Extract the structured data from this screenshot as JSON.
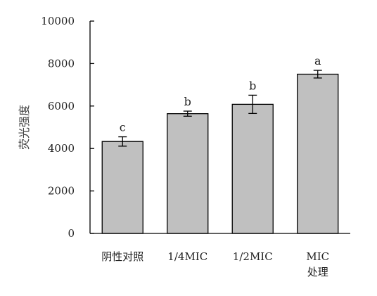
{
  "chart_data": {
    "type": "bar",
    "categories": [
      "阴性对照",
      "1/4MIC",
      "1/2MIC",
      "MIC处理"
    ],
    "category_lines": [
      [
        "阴性对照"
      ],
      [
        "1/4MIC"
      ],
      [
        "1/2MIC"
      ],
      [
        "MIC",
        "处理"
      ]
    ],
    "values": [
      4330,
      5640,
      6080,
      7500
    ],
    "errors": [
      220,
      120,
      430,
      180
    ],
    "significance": [
      "c",
      "b",
      "b",
      "a"
    ],
    "title": "",
    "xlabel": "",
    "ylabel": "荧光强度",
    "ylim": [
      0,
      10000
    ],
    "yticks": [
      0,
      2000,
      4000,
      6000,
      8000,
      10000
    ],
    "grid": false,
    "legend": "none",
    "colors": {
      "bar_fill": "#c0c0c0",
      "bar_stroke": "#000000",
      "axis": "#000000",
      "error_bar": "#000000"
    }
  }
}
